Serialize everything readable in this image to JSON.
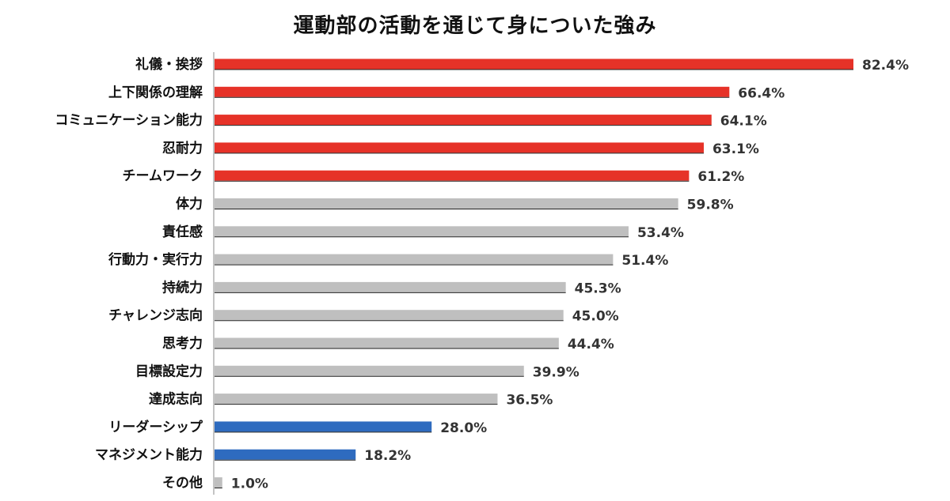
{
  "chart_data": {
    "type": "bar",
    "orientation": "horizontal",
    "title": "運動部の活動を通じて身についた強み",
    "categories": [
      "礼儀・挨拶",
      "上下関係の理解",
      "コミュニケーション能力",
      "忍耐力",
      "チームワーク",
      "体力",
      "責任感",
      "行動力・実行力",
      "持続力",
      "チャレンジ志向",
      "思考力",
      "目標設定力",
      "達成志向",
      "リーダーシップ",
      "マネジメント能力",
      "その他"
    ],
    "values": [
      82.4,
      66.4,
      64.1,
      63.1,
      61.2,
      59.8,
      53.4,
      51.4,
      45.3,
      45.0,
      44.4,
      39.9,
      36.5,
      28.0,
      18.2,
      1.0
    ],
    "value_labels": [
      "82.4%",
      "66.4%",
      "64.1%",
      "63.1%",
      "61.2%",
      "59.8%",
      "53.4%",
      "51.4%",
      "45.3%",
      "45.0%",
      "44.4%",
      "39.9%",
      "36.5%",
      "28.0%",
      "18.2%",
      "1.0%"
    ],
    "bar_groups": [
      "red",
      "red",
      "red",
      "red",
      "red",
      "gray",
      "gray",
      "gray",
      "gray",
      "gray",
      "gray",
      "gray",
      "gray",
      "blue",
      "blue",
      "gray"
    ],
    "colors": {
      "red": "#e63228",
      "gray": "#bfbfbf",
      "blue": "#2e6bbf",
      "axis": "#888888",
      "underline": "#222222"
    },
    "xlim": [
      0,
      100
    ],
    "grid": false,
    "legend": "none"
  }
}
